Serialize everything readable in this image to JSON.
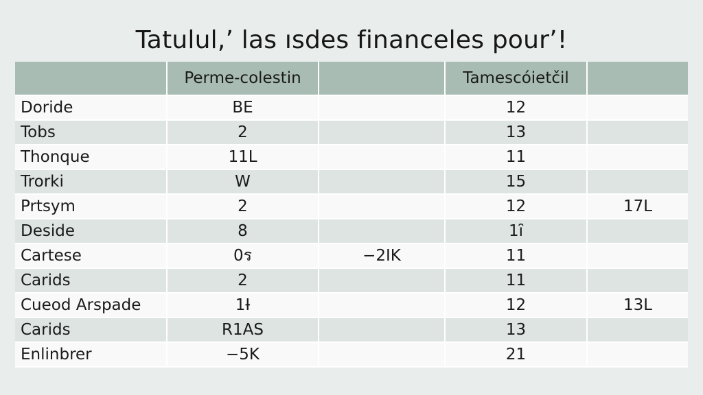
{
  "title": "Tatulul,’ las ısdes financeles pour’!",
  "chart_data": {
    "type": "table",
    "columns": [
      "",
      "Perme-colestin",
      "",
      "Tamescóietčil",
      ""
    ],
    "rows": [
      [
        "Doride",
        "BE",
        "",
        "12",
        ""
      ],
      [
        "Tobs",
        "2",
        "",
        "13",
        ""
      ],
      [
        "Thonque",
        "11L",
        "",
        "11",
        ""
      ],
      [
        "Trorki",
        "W",
        "",
        "15",
        ""
      ],
      [
        "Prtsym",
        "2",
        "",
        "12",
        "17L"
      ],
      [
        "Deside",
        "8",
        "",
        "1ȋ",
        ""
      ],
      [
        "Cartese",
        "0ร",
        "−2IK",
        "11",
        ""
      ],
      [
        "Carids",
        "2",
        "",
        "11",
        ""
      ],
      [
        "Cueod Arspade",
        "1Ɨ",
        "",
        "12",
        "13L"
      ],
      [
        "Carids",
        "R1AS",
        "",
        "13",
        ""
      ],
      [
        "Enlinbrer",
        "−5K",
        "",
        "21",
        ""
      ]
    ]
  },
  "colors": {
    "background": "#e9eeec",
    "header": "#a8bcb4",
    "row_odd": "#f9f9f9",
    "row_even": "#dde4e1"
  }
}
